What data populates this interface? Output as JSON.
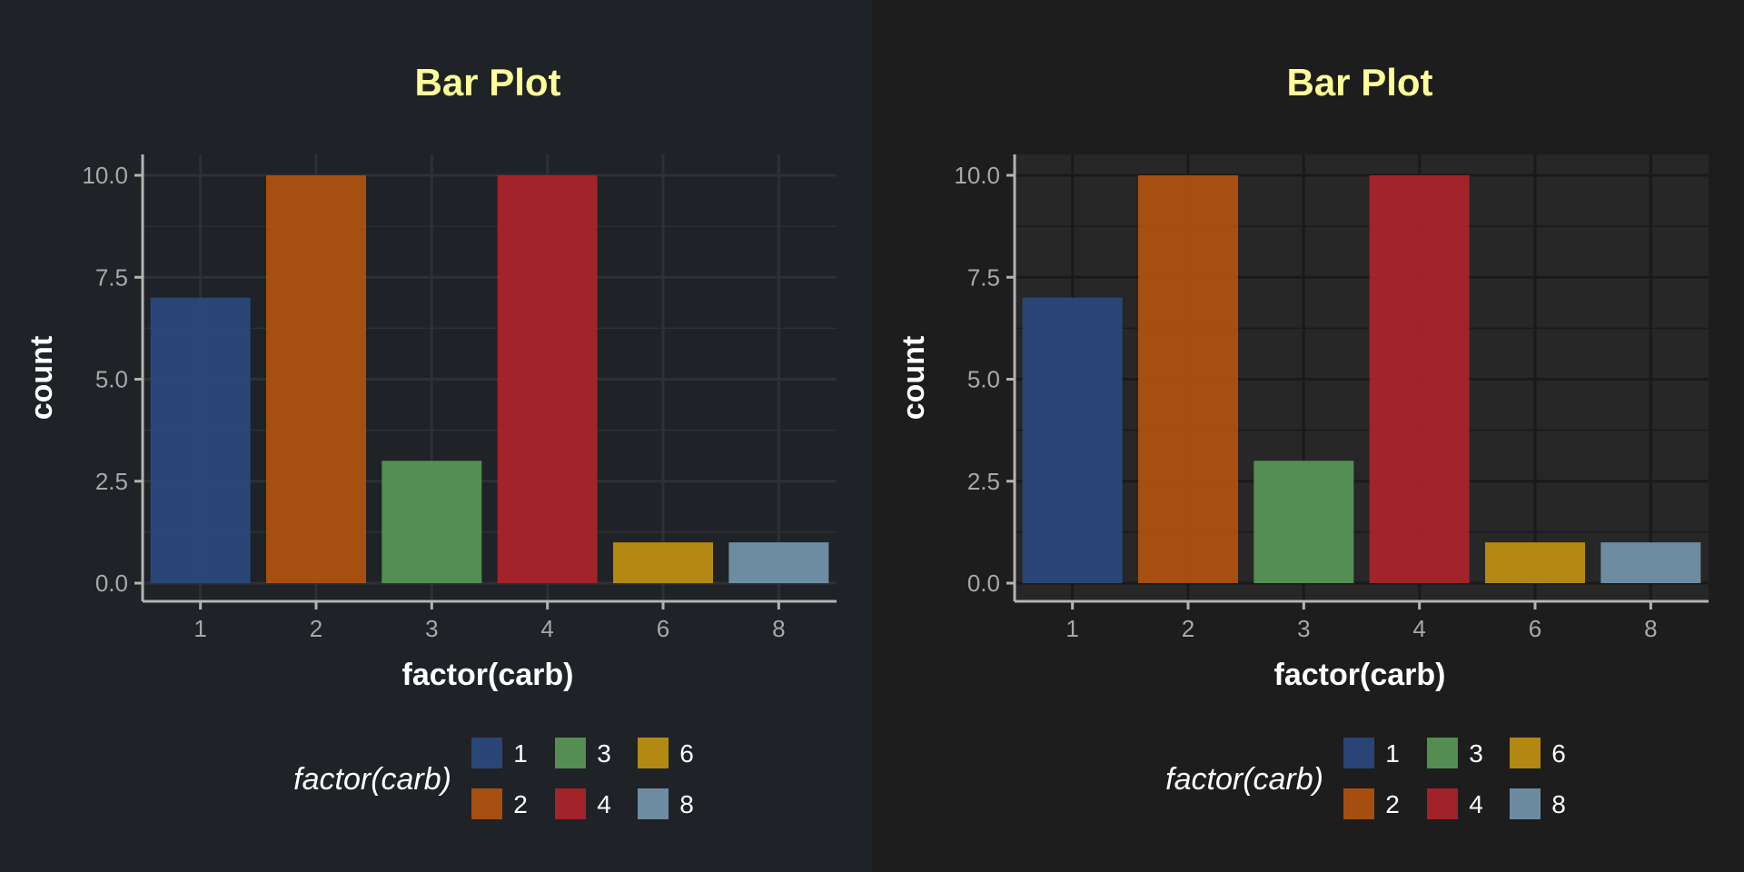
{
  "colors": {
    "page_left": "#1f2226",
    "page_right": "#1d1d1d",
    "plot_bg_right": "#272727",
    "title": "#ffff99",
    "tick_text": "#a8a8a8",
    "axis_line": "#b3b3b3",
    "grid_left": "#2d3035",
    "grid_right": "#1a1a1a",
    "legend_text": "#ffffff"
  },
  "chart_data": [
    {
      "type": "bar",
      "title": "Bar Plot",
      "xlabel": "factor(carb)",
      "ylabel": "count",
      "categories": [
        "1",
        "2",
        "3",
        "4",
        "6",
        "8"
      ],
      "values": [
        7,
        10,
        3,
        10,
        1,
        1
      ],
      "bar_colors": [
        "#2a4a7f",
        "#b5540f",
        "#5a9a58",
        "#b0232a",
        "#c39512",
        "#7698b0"
      ],
      "ylim": [
        0,
        10.5
      ],
      "yticks": [
        0,
        2.5,
        5,
        7.5,
        10
      ],
      "ytick_labels": [
        "0.0",
        "2.5",
        "5.0",
        "7.5",
        "10.0"
      ],
      "grid": true,
      "legend": {
        "title": "factor(carb)",
        "placement": "bottom",
        "items": [
          "1",
          "2",
          "3",
          "4",
          "6",
          "8"
        ]
      }
    },
    {
      "type": "bar",
      "title": "Bar Plot",
      "xlabel": "factor(carb)",
      "ylabel": "count",
      "categories": [
        "1",
        "2",
        "3",
        "4",
        "6",
        "8"
      ],
      "values": [
        7,
        10,
        3,
        10,
        1,
        1
      ],
      "bar_colors": [
        "#2a4a7f",
        "#b5540f",
        "#5a9a58",
        "#b0232a",
        "#c39512",
        "#7698b0"
      ],
      "ylim": [
        0,
        10.5
      ],
      "yticks": [
        0,
        2.5,
        5,
        7.5,
        10
      ],
      "ytick_labels": [
        "0.0",
        "2.5",
        "5.0",
        "7.5",
        "10.0"
      ],
      "grid": true,
      "legend": {
        "title": "factor(carb)",
        "placement": "bottom",
        "items": [
          "1",
          "2",
          "3",
          "4",
          "6",
          "8"
        ]
      }
    }
  ]
}
